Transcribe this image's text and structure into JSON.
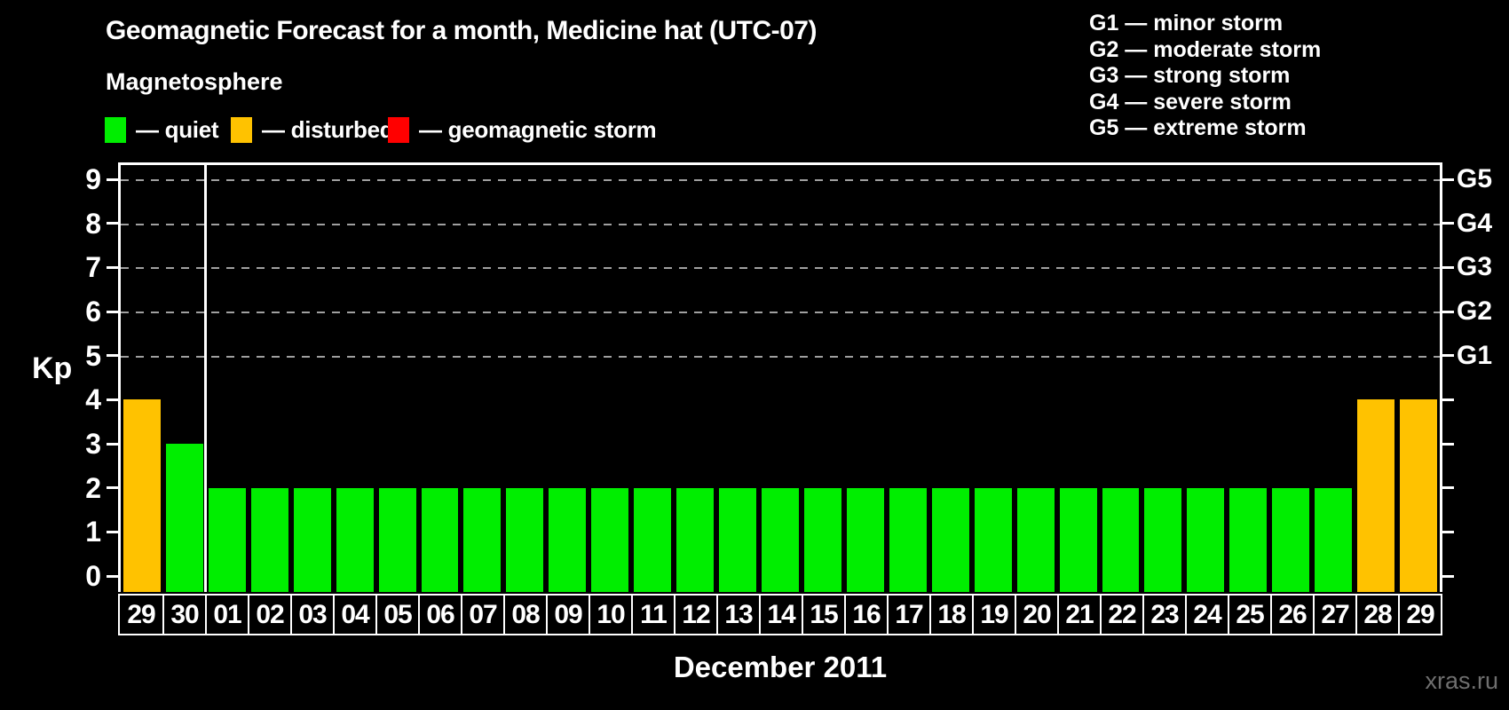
{
  "page": {
    "title": "Geomagnetic Forecast for a month, Medicine hat (UTC-07)",
    "watermark": "xras.ru",
    "background": "#000000"
  },
  "legend": {
    "heading": "Magnetosphere",
    "items": [
      {
        "name": "quiet",
        "label": "— quiet",
        "color": "#00ee00"
      },
      {
        "name": "disturbed",
        "label": "— disturbed",
        "color": "#ffc200"
      },
      {
        "name": "storm",
        "label": "— geomagnetic storm",
        "color": "#ff0000"
      }
    ]
  },
  "g_scale_legend": [
    {
      "code": "G1",
      "desc": "minor storm",
      "text": "G1 — minor storm"
    },
    {
      "code": "G2",
      "desc": "moderate storm",
      "text": "G2 — moderate storm"
    },
    {
      "code": "G3",
      "desc": "strong storm",
      "text": "G3 — strong storm"
    },
    {
      "code": "G4",
      "desc": "severe storm",
      "text": "G4 — severe storm"
    },
    {
      "code": "G5",
      "desc": "extreme storm",
      "text": "G5 — extreme storm"
    }
  ],
  "colors": {
    "quiet": "#00ee00",
    "disturbed": "#ffc200",
    "storm": "#ff0000",
    "axis": "#ffffff",
    "grid": "#a0a0a0",
    "watermark": "#6f6f6f"
  },
  "chart_data": {
    "type": "bar",
    "title": "Geomagnetic Forecast for a month, Medicine hat (UTC-07)",
    "xlabel": "December 2011",
    "ylabel": "Kp",
    "ylim": [
      0,
      9
    ],
    "yticks": [
      0,
      1,
      2,
      3,
      4,
      5,
      6,
      7,
      8,
      9
    ],
    "gridlines_at": [
      5,
      6,
      7,
      8,
      9
    ],
    "grid_style": "dashed horizontal",
    "right_axis": [
      {
        "code": "G1",
        "kp": 5
      },
      {
        "code": "G2",
        "kp": 6
      },
      {
        "code": "G3",
        "kp": 7
      },
      {
        "code": "G4",
        "kp": 8
      },
      {
        "code": "G5",
        "kp": 9
      }
    ],
    "categories": [
      "29",
      "30",
      "01",
      "02",
      "03",
      "04",
      "05",
      "06",
      "07",
      "08",
      "09",
      "10",
      "11",
      "12",
      "13",
      "14",
      "15",
      "16",
      "17",
      "18",
      "19",
      "20",
      "21",
      "22",
      "23",
      "24",
      "25",
      "26",
      "27",
      "28",
      "29"
    ],
    "values": [
      4,
      3,
      2,
      2,
      2,
      2,
      2,
      2,
      2,
      2,
      2,
      2,
      2,
      2,
      2,
      2,
      2,
      2,
      2,
      2,
      2,
      2,
      2,
      2,
      2,
      2,
      2,
      2,
      2,
      4,
      4
    ],
    "states": [
      "disturbed",
      "quiet",
      "quiet",
      "quiet",
      "quiet",
      "quiet",
      "quiet",
      "quiet",
      "quiet",
      "quiet",
      "quiet",
      "quiet",
      "quiet",
      "quiet",
      "quiet",
      "quiet",
      "quiet",
      "quiet",
      "quiet",
      "quiet",
      "quiet",
      "quiet",
      "quiet",
      "quiet",
      "quiet",
      "quiet",
      "quiet",
      "quiet",
      "quiet",
      "disturbed",
      "disturbed"
    ],
    "month_boundary_after_index": 1,
    "legend_position": "top-left"
  }
}
